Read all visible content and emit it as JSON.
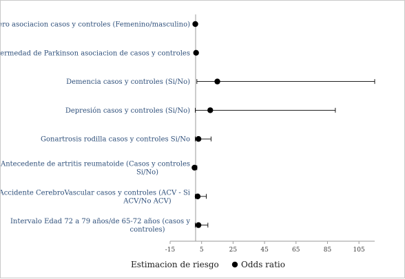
{
  "chart_data": {
    "type": "scatter",
    "orientation": "horizontal-forest-plot",
    "title": "",
    "xlabel": "Estimacion de riesgo",
    "xlim": [
      -15,
      115
    ],
    "xticks": [
      -15,
      5,
      25,
      45,
      65,
      85,
      105
    ],
    "grid": false,
    "legend": {
      "placement": "bottom",
      "entries": [
        "Odds ratio"
      ]
    },
    "marker_color": "#000000",
    "label_color": "#2e4f7a",
    "categories": [
      {
        "lines": [
          "Genero asociacion casos y controles (Femenino/masculino)"
        ],
        "or": 1.0,
        "ci": null
      },
      {
        "lines": [
          "Enfermedad de Parkinson asociacion de casos y controles"
        ],
        "or": 1.5,
        "ci": null
      },
      {
        "lines": [
          "Demencia casos y controles (Si/No)"
        ],
        "or": 15.0,
        "ci": [
          2.0,
          115
        ]
      },
      {
        "lines": [
          "Depresión casos y controles (Si/No)"
        ],
        "or": 10.5,
        "ci": [
          1.0,
          90.0
        ]
      },
      {
        "lines": [
          "Gonartrosis rodilla casos y controles Si/No"
        ],
        "or": 3.0,
        "ci": [
          1.0,
          11.0
        ]
      },
      {
        "lines": [
          "Antecedente de artritis reumatoide (Casos y controles",
          "Si/No)"
        ],
        "or": 0.5,
        "ci": [
          0.2,
          2.0
        ]
      },
      {
        "lines": [
          "Accidente CerebroVascular casos y controles (ACV - Si",
          "ACV/No ACV)"
        ],
        "or": 2.5,
        "ci": [
          1.0,
          8.0
        ]
      },
      {
        "lines": [
          "Intervalo Edad 72 a 79 años/de 65-72 años (casos y",
          "controles)"
        ],
        "or": 3.0,
        "ci": [
          1.0,
          9.0
        ]
      }
    ]
  }
}
